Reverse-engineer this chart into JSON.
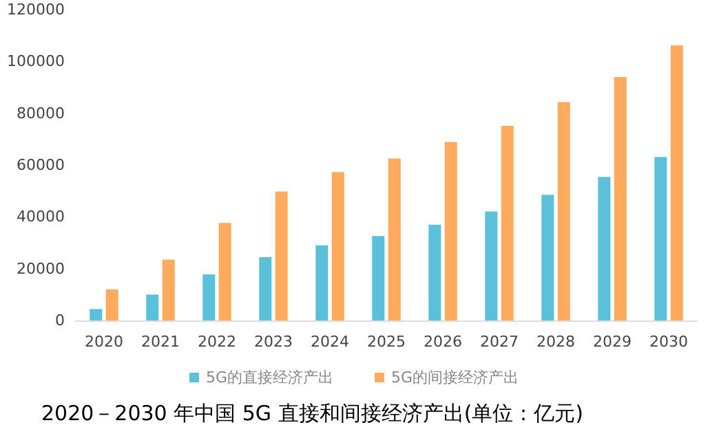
{
  "chart_data": {
    "type": "bar",
    "title": "2020－2030 年中国 5G 直接和间接经济产出(单位：亿元)",
    "categories": [
      "2020",
      "2021",
      "2022",
      "2023",
      "2024",
      "2025",
      "2026",
      "2027",
      "2028",
      "2029",
      "2030"
    ],
    "series": [
      {
        "name": "5G的直接经济产出",
        "color": "#5bc0d9",
        "values": [
          4400,
          10000,
          17800,
          24400,
          29000,
          32600,
          37000,
          42100,
          48500,
          55400,
          63100
        ]
      },
      {
        "name": "5G的间接经济产出",
        "color": "#ffaa5c",
        "values": [
          12000,
          23500,
          37600,
          49800,
          57300,
          62500,
          68900,
          75100,
          84300,
          94000,
          106200
        ]
      }
    ],
    "ylim": [
      0,
      120000
    ],
    "yticks": [
      0,
      20000,
      40000,
      60000,
      80000,
      100000,
      120000
    ],
    "grid": false,
    "legend": "bottom"
  }
}
